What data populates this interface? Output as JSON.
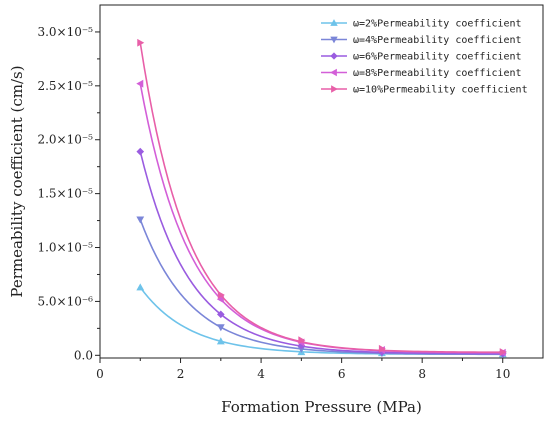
{
  "chart_data": {
    "type": "line",
    "xlabel": "Formation Pressure (MPa)",
    "ylabel": "Permeability coefficient (cm/s)",
    "xlim": [
      0,
      11
    ],
    "ylim": [
      -2.5e-07,
      3.25e-05
    ],
    "x_ticks": [
      0,
      2,
      4,
      6,
      8,
      10
    ],
    "y_ticks": [
      {
        "value": 0,
        "label": "0.0"
      },
      {
        "value": 5e-06,
        "label": "5.0×10⁻⁶"
      },
      {
        "value": 1e-05,
        "label": "1.0×10⁻⁵"
      },
      {
        "value": 1.5e-05,
        "label": "1.5×10⁻⁵"
      },
      {
        "value": 2e-05,
        "label": "2.0×10⁻⁵"
      },
      {
        "value": 2.5e-05,
        "label": "2.5×10⁻⁵"
      },
      {
        "value": 3e-05,
        "label": "3.0×10⁻⁵"
      }
    ],
    "grid": false,
    "legend_position": "top-right",
    "x": [
      1,
      3,
      5,
      7,
      10
    ],
    "series": [
      {
        "name": "ω=2%Permeability coefficient",
        "color": "#6ec3ea",
        "marker": "triangle-up",
        "values": [
          6.3e-06,
          1.3e-06,
          3e-07,
          2e-07,
          1e-07
        ]
      },
      {
        "name": "ω=4%Permeability coefficient",
        "color": "#7b86d8",
        "marker": "triangle-down",
        "values": [
          1.26e-05,
          2.6e-06,
          6e-07,
          2e-07,
          1e-07
        ]
      },
      {
        "name": "ω=6%Permeability coefficient",
        "color": "#9a5ce0",
        "marker": "diamond",
        "values": [
          1.89e-05,
          3.8e-06,
          9e-07,
          3e-07,
          1.5e-07
        ]
      },
      {
        "name": "ω=8%Permeability coefficient",
        "color": "#d35fd8",
        "marker": "triangle-left",
        "values": [
          2.52e-05,
          5.2e-06,
          1.2e-06,
          5e-07,
          2.5e-07
        ]
      },
      {
        "name": "ω=10%Permeability coefficient",
        "color": "#e85fa8",
        "marker": "triangle-right",
        "values": [
          2.9e-05,
          5.6e-06,
          1.4e-06,
          6e-07,
          3e-07
        ]
      }
    ]
  }
}
